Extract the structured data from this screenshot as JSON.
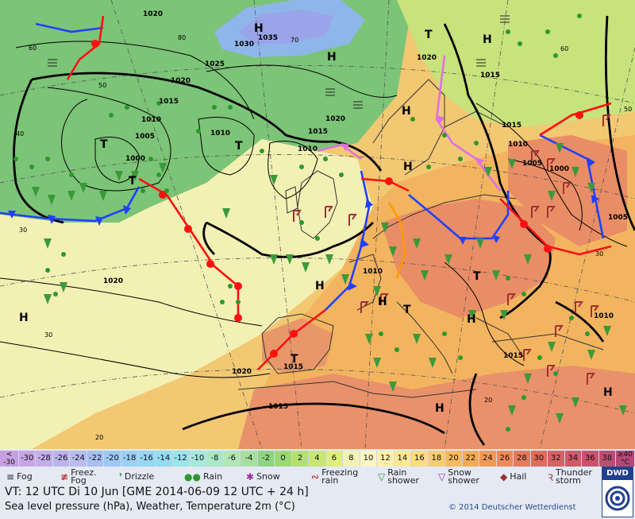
{
  "map": {
    "isobar_labels": [
      "1020",
      "1015",
      "1030",
      "1035",
      "1025",
      "1020",
      "1010",
      "1005",
      "1000",
      "1015",
      "1010",
      "1010",
      "1020",
      "1010",
      "1015",
      "1015",
      "1020",
      "1020",
      "1015",
      "1015",
      "1010",
      "1005",
      "1000",
      "1020",
      "1015",
      "1005",
      "1010"
    ],
    "pressure_centers": [
      "H",
      "H",
      "H",
      "H",
      "H",
      "H",
      "H",
      "H",
      "H",
      "H",
      "H",
      "T",
      "T",
      "T",
      "T",
      "T",
      "T",
      "T"
    ],
    "grid_labels": [
      "60",
      "50",
      "40",
      "30",
      "20",
      "30",
      "70",
      "80",
      "60",
      "50",
      "30",
      "20"
    ],
    "colors": {
      "sea_green": "#76c06f",
      "land_warm": "#f2b35f",
      "land_hot": "#e88a64",
      "cold_blue": "#88b2e8",
      "warm_front": "#ff1111",
      "cold_front": "#2040ff",
      "occluded_front": "#e080e0",
      "trough": "#ff9900",
      "precip_symbol": "#2b9a2b"
    }
  },
  "legend": {
    "scale_first_top": "<",
    "scale_first_bottom": "-30",
    "scale_values": [
      "-30",
      "-28",
      "-26",
      "-24",
      "-22",
      "-20",
      "-18",
      "-16",
      "-14",
      "-12",
      "-10",
      "-8",
      "-6",
      "-4",
      "-2",
      "0",
      "2",
      "4",
      "6",
      "8",
      "10",
      "12",
      "14",
      "16",
      "18",
      "20",
      "22",
      "24",
      "26",
      "28",
      "30",
      "32",
      "34",
      "36",
      "38"
    ],
    "scale_last_top": "≥40",
    "scale_last_bottom": "°C",
    "scale_colors": [
      "#c6a0e0",
      "#c8a6e6",
      "#c3aee9",
      "#bcb4ec",
      "#b8bcef",
      "#a7c0f1",
      "#9fc7f3",
      "#9ad0f4",
      "#96d7f3",
      "#93ddef",
      "#9be5ea",
      "#a5e9dc",
      "#abe8c9",
      "#b2e6b6",
      "#a7df9f",
      "#8fd383",
      "#9bd978",
      "#b3df74",
      "#c9e576",
      "#e0ec7e",
      "#f3f3b8",
      "#fbf6c4",
      "#fbf0ab",
      "#fbe796",
      "#fbdc83",
      "#f7cc72",
      "#f5bb61",
      "#f3ab58",
      "#f09a58",
      "#ec8a5a",
      "#e57a5c",
      "#de6c5f",
      "#d66364",
      "#cf5b68",
      "#c8546c",
      "#bd4e71",
      "#b44876"
    ],
    "weather": [
      {
        "label_1": "Fog",
        "label_2": ""
      },
      {
        "label_1": "Freez.",
        "label_2": "Fog"
      },
      {
        "label_1": "Drizzle",
        "label_2": ""
      },
      {
        "label_1": "Rain",
        "label_2": ""
      },
      {
        "label_1": "Snow",
        "label_2": ""
      },
      {
        "label_1": "Freezing",
        "label_2": "rain"
      },
      {
        "label_1": "Rain",
        "label_2": "shower"
      },
      {
        "label_1": "Snow",
        "label_2": "shower"
      },
      {
        "label_1": "Hail",
        "label_2": ""
      },
      {
        "label_1": "Thunder",
        "label_2": "storm"
      }
    ],
    "vt_line": "VT: 12 UTC Di   10 Jun [GME 2014-06-09  12 UTC + 24 h]",
    "subtitle": "Sea level pressure (hPa), Weather, Temperature 2m (°C)",
    "copyright": "© 2014 Deutscher Wetterdienst",
    "logo_text": "DWD"
  }
}
